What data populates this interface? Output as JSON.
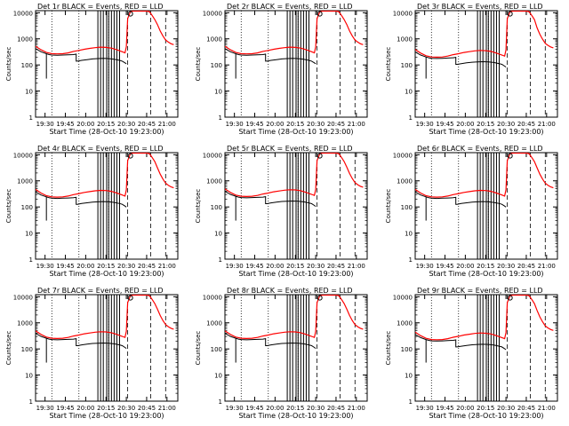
{
  "figure": {
    "xlabel": "Start Time (28-Oct-10 19:23:00)",
    "ylabel": "Counts/sec"
  },
  "axes": {
    "x_ticks": [
      "19:30",
      "19:45",
      "20:00",
      "20:15",
      "20:30",
      "20:45",
      "21:00"
    ],
    "x_tick_minutes": [
      7,
      22,
      37,
      52,
      67,
      82,
      97
    ],
    "y_ticks": [
      "1",
      "10",
      "100",
      "1000",
      "10000"
    ],
    "x_range_minutes": [
      0,
      105
    ],
    "y_range": [
      1,
      12000
    ],
    "y_scale": "log",
    "dotted_vlines_minutes": [
      12,
      32,
      54
    ],
    "dashed_vlines_minutes": [
      68,
      85,
      96
    ]
  },
  "colors": {
    "events": "#000000",
    "lld": "#ff0000",
    "axes": "#000000"
  },
  "chart_data": [
    {
      "type": "line",
      "title": "Det 1r BLACK = Events, RED = LLD",
      "scale": 1.0,
      "series": [
        {
          "name": "Events",
          "color": "black"
        },
        {
          "name": "LLD",
          "color": "red"
        }
      ]
    },
    {
      "type": "line",
      "title": "Det 2r BLACK = Events, RED = LLD",
      "scale": 1.0,
      "series": [
        {
          "name": "Events",
          "color": "black"
        },
        {
          "name": "LLD",
          "color": "red"
        }
      ]
    },
    {
      "type": "line",
      "title": "Det 3r BLACK = Events, RED = LLD",
      "scale": 0.75,
      "series": [
        {
          "name": "Events",
          "color": "black"
        },
        {
          "name": "LLD",
          "color": "red"
        }
      ]
    },
    {
      "type": "line",
      "title": "Det 4r BLACK = Events, RED = LLD",
      "scale": 0.9,
      "series": [
        {
          "name": "Events",
          "color": "black"
        },
        {
          "name": "LLD",
          "color": "red"
        }
      ]
    },
    {
      "type": "line",
      "title": "Det 5r BLACK = Events, RED = LLD",
      "scale": 0.95,
      "series": [
        {
          "name": "Events",
          "color": "black"
        },
        {
          "name": "LLD",
          "color": "red"
        }
      ]
    },
    {
      "type": "line",
      "title": "Det 6r BLACK = Events, RED = LLD",
      "scale": 0.9,
      "series": [
        {
          "name": "Events",
          "color": "black"
        },
        {
          "name": "LLD",
          "color": "red"
        }
      ]
    },
    {
      "type": "line",
      "title": "Det 7r BLACK = Events, RED = LLD",
      "scale": 0.95,
      "series": [
        {
          "name": "Events",
          "color": "black"
        },
        {
          "name": "LLD",
          "color": "red"
        }
      ]
    },
    {
      "type": "line",
      "title": "Det 8r BLACK = Events, RED = LLD",
      "scale": 0.95,
      "series": [
        {
          "name": "Events",
          "color": "black"
        },
        {
          "name": "LLD",
          "color": "red"
        }
      ]
    },
    {
      "type": "line",
      "title": "Det 9r BLACK = Events, RED = LLD",
      "scale": 0.85,
      "series": [
        {
          "name": "Events",
          "color": "black"
        },
        {
          "name": "LLD",
          "color": "red"
        }
      ]
    }
  ],
  "profile": {
    "lld_x": [
      0,
      4,
      8,
      12,
      16,
      20,
      24,
      28,
      32,
      36,
      40,
      44,
      48,
      52,
      56,
      60,
      64,
      66,
      67,
      68,
      70,
      72,
      74,
      76,
      78,
      80,
      82,
      84,
      86,
      88,
      90,
      92,
      94,
      96,
      98,
      100,
      102
    ],
    "lld_y": [
      520,
      380,
      300,
      270,
      265,
      270,
      290,
      330,
      360,
      400,
      430,
      460,
      480,
      470,
      440,
      380,
      320,
      290,
      500,
      6000,
      11000,
      11500,
      11500,
      11500,
      11500,
      11500,
      11500,
      11000,
      8000,
      5500,
      3500,
      2000,
      1300,
      900,
      750,
      650,
      600
    ],
    "events_x": [
      0,
      4,
      8,
      10,
      12,
      16,
      20,
      24,
      28,
      30,
      31,
      34,
      38,
      42,
      46,
      50,
      54,
      58,
      62,
      64,
      66,
      67
    ],
    "events_y": [
      420,
      320,
      270,
      250,
      240,
      235,
      240,
      245,
      250,
      260,
      140,
      150,
      160,
      170,
      175,
      178,
      175,
      165,
      150,
      140,
      120,
      110
    ],
    "events_drop": {
      "x": 8,
      "y": 30
    },
    "spikes_minutes": [
      46,
      48,
      50,
      52.5,
      54,
      56,
      58,
      60,
      62
    ],
    "circle": {
      "x": 70,
      "y": 9000
    },
    "flat": [
      78,
      82
    ]
  }
}
